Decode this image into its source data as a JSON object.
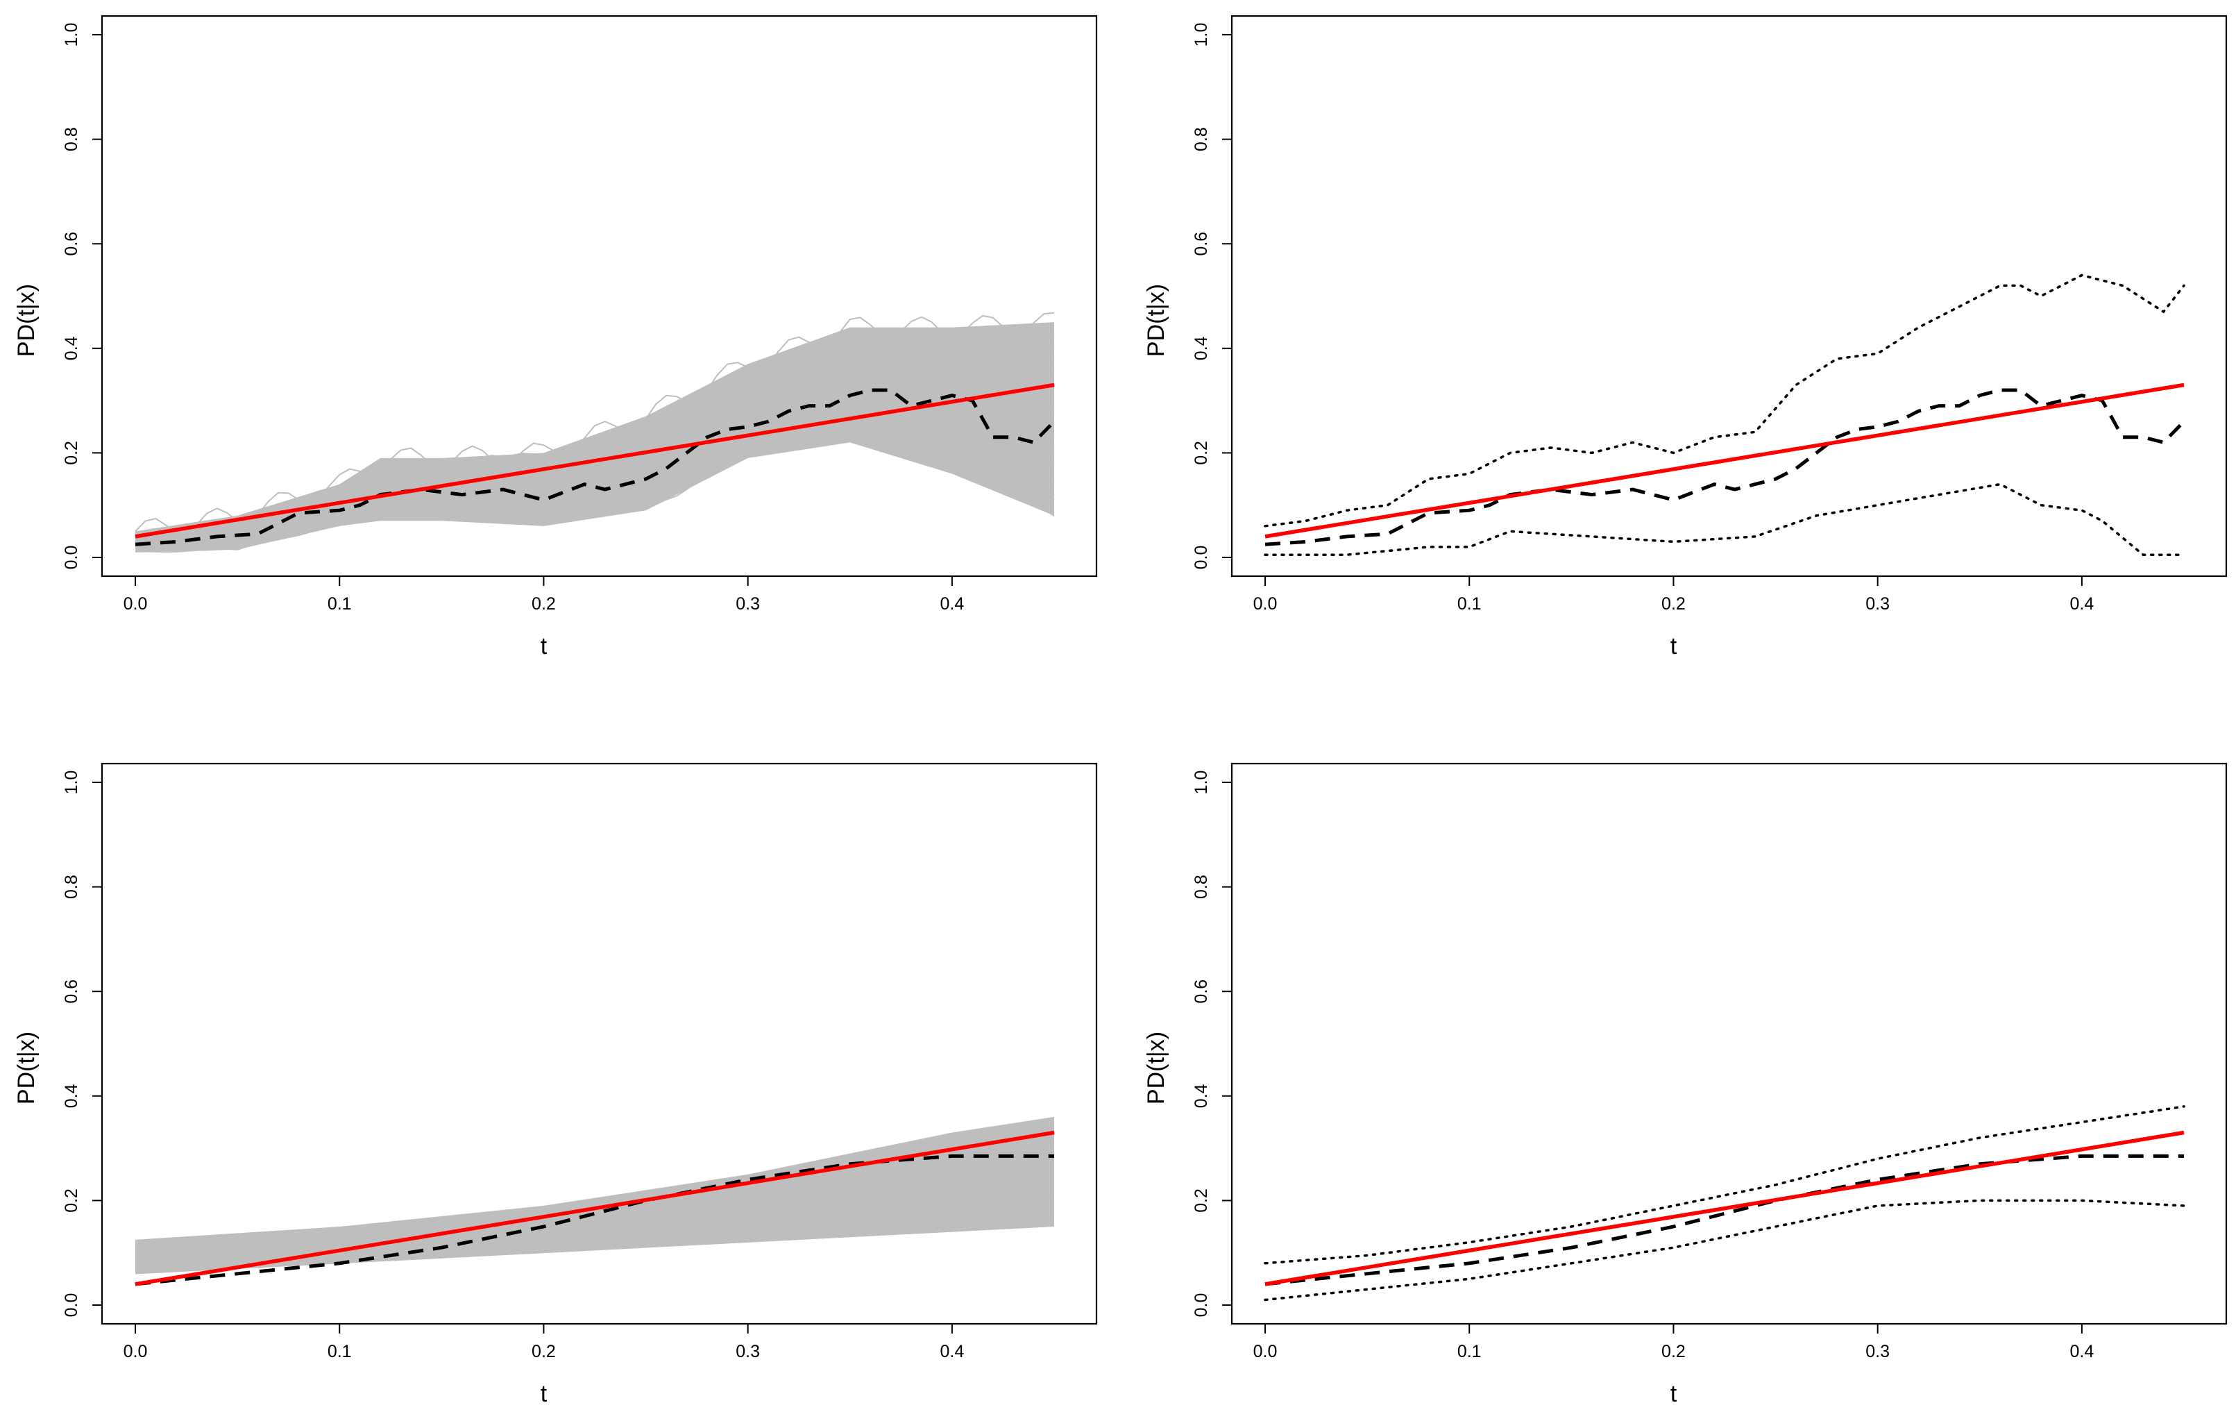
{
  "colors": {
    "true_curve": "#ff0000",
    "estimate": "#000000",
    "samples": "#bebebe",
    "bounds": "#000000"
  },
  "chart_data": [
    {
      "id": "top-left",
      "type": "line",
      "variant": "samples",
      "xlabel": "t",
      "ylabel": "PD(t|x)",
      "xlim": [
        0,
        0.45
      ],
      "ylim": [
        0,
        1
      ],
      "xticks": [
        "0.0",
        "0.1",
        "0.2",
        "0.3",
        "0.4"
      ],
      "yticks": [
        "0.0",
        "0.2",
        "0.4",
        "0.6",
        "0.8",
        "1.0"
      ],
      "true_curve": {
        "x": [
          0,
          0.45
        ],
        "y": [
          0.04,
          0.33
        ]
      },
      "estimate": {
        "x": [
          0,
          0.02,
          0.04,
          0.06,
          0.08,
          0.1,
          0.11,
          0.12,
          0.14,
          0.16,
          0.18,
          0.2,
          0.22,
          0.23,
          0.24,
          0.25,
          0.26,
          0.27,
          0.28,
          0.29,
          0.3,
          0.31,
          0.32,
          0.33,
          0.34,
          0.35,
          0.36,
          0.37,
          0.38,
          0.39,
          0.4,
          0.41,
          0.42,
          0.43,
          0.44,
          0.45
        ],
        "y": [
          0.025,
          0.03,
          0.04,
          0.045,
          0.085,
          0.09,
          0.1,
          0.12,
          0.13,
          0.12,
          0.13,
          0.11,
          0.14,
          0.13,
          0.14,
          0.15,
          0.17,
          0.2,
          0.23,
          0.245,
          0.25,
          0.26,
          0.28,
          0.29,
          0.29,
          0.31,
          0.32,
          0.32,
          0.29,
          0.3,
          0.31,
          0.3,
          0.23,
          0.23,
          0.22,
          0.26
        ]
      },
      "sample_band": {
        "x": [
          0,
          0.05,
          0.1,
          0.12,
          0.15,
          0.2,
          0.25,
          0.3,
          0.35,
          0.4,
          0.45
        ],
        "lower": [
          0.01,
          0.015,
          0.06,
          0.07,
          0.07,
          0.06,
          0.09,
          0.19,
          0.22,
          0.16,
          0.08
        ],
        "upper": [
          0.05,
          0.08,
          0.14,
          0.19,
          0.19,
          0.2,
          0.27,
          0.37,
          0.44,
          0.44,
          0.45
        ]
      }
    },
    {
      "id": "top-right",
      "type": "line",
      "variant": "bounds",
      "xlabel": "t",
      "ylabel": "PD(t|x)",
      "xlim": [
        0,
        0.45
      ],
      "ylim": [
        0,
        1
      ],
      "xticks": [
        "0.0",
        "0.1",
        "0.2",
        "0.3",
        "0.4"
      ],
      "yticks": [
        "0.0",
        "0.2",
        "0.4",
        "0.6",
        "0.8",
        "1.0"
      ],
      "true_curve": {
        "x": [
          0,
          0.45
        ],
        "y": [
          0.04,
          0.33
        ]
      },
      "estimate": {
        "x": [
          0,
          0.02,
          0.04,
          0.06,
          0.08,
          0.1,
          0.11,
          0.12,
          0.14,
          0.16,
          0.18,
          0.2,
          0.22,
          0.23,
          0.24,
          0.25,
          0.26,
          0.27,
          0.28,
          0.29,
          0.3,
          0.31,
          0.32,
          0.33,
          0.34,
          0.35,
          0.36,
          0.37,
          0.38,
          0.39,
          0.4,
          0.41,
          0.42,
          0.43,
          0.44,
          0.45
        ],
        "y": [
          0.025,
          0.03,
          0.04,
          0.045,
          0.085,
          0.09,
          0.1,
          0.12,
          0.13,
          0.12,
          0.13,
          0.11,
          0.14,
          0.13,
          0.14,
          0.15,
          0.17,
          0.2,
          0.23,
          0.245,
          0.25,
          0.26,
          0.28,
          0.29,
          0.29,
          0.31,
          0.32,
          0.32,
          0.29,
          0.3,
          0.31,
          0.3,
          0.23,
          0.23,
          0.22,
          0.26
        ]
      },
      "upper_bound": {
        "x": [
          0,
          0.02,
          0.04,
          0.06,
          0.08,
          0.1,
          0.11,
          0.12,
          0.14,
          0.16,
          0.18,
          0.2,
          0.22,
          0.24,
          0.26,
          0.28,
          0.3,
          0.32,
          0.34,
          0.36,
          0.37,
          0.38,
          0.39,
          0.4,
          0.42,
          0.44,
          0.45
        ],
        "y": [
          0.06,
          0.07,
          0.09,
          0.1,
          0.15,
          0.16,
          0.18,
          0.2,
          0.21,
          0.2,
          0.22,
          0.2,
          0.23,
          0.24,
          0.33,
          0.38,
          0.39,
          0.44,
          0.48,
          0.52,
          0.52,
          0.5,
          0.52,
          0.54,
          0.52,
          0.47,
          0.52
        ]
      },
      "lower_bound": {
        "x": [
          0,
          0.04,
          0.08,
          0.1,
          0.12,
          0.16,
          0.2,
          0.24,
          0.27,
          0.3,
          0.33,
          0.36,
          0.38,
          0.4,
          0.41,
          0.43,
          0.45
        ],
        "y": [
          0.005,
          0.005,
          0.02,
          0.02,
          0.05,
          0.04,
          0.03,
          0.04,
          0.08,
          0.1,
          0.12,
          0.14,
          0.1,
          0.09,
          0.07,
          0.005,
          0.005
        ]
      }
    },
    {
      "id": "bottom-left",
      "type": "line",
      "variant": "samples",
      "xlabel": "t",
      "ylabel": "PD(t|x)",
      "xlim": [
        0,
        0.45
      ],
      "ylim": [
        0,
        1
      ],
      "xticks": [
        "0.0",
        "0.1",
        "0.2",
        "0.3",
        "0.4"
      ],
      "yticks": [
        "0.0",
        "0.2",
        "0.4",
        "0.6",
        "0.8",
        "1.0"
      ],
      "true_curve": {
        "x": [
          0,
          0.45
        ],
        "y": [
          0.04,
          0.33
        ]
      },
      "estimate": {
        "x": [
          0,
          0.05,
          0.1,
          0.15,
          0.2,
          0.25,
          0.3,
          0.35,
          0.4,
          0.43,
          0.45
        ],
        "y": [
          0.04,
          0.06,
          0.08,
          0.11,
          0.15,
          0.2,
          0.24,
          0.27,
          0.285,
          0.285,
          0.285
        ]
      },
      "sample_band": {
        "x": [
          0,
          0.1,
          0.2,
          0.3,
          0.4,
          0.45
        ],
        "lower": [
          0.06,
          0.08,
          0.1,
          0.12,
          0.14,
          0.15
        ],
        "upper": [
          0.125,
          0.15,
          0.19,
          0.25,
          0.33,
          0.36
        ]
      }
    },
    {
      "id": "bottom-right",
      "type": "line",
      "variant": "bounds",
      "xlabel": "t",
      "ylabel": "PD(t|x)",
      "xlim": [
        0,
        0.45
      ],
      "ylim": [
        0,
        1
      ],
      "xticks": [
        "0.0",
        "0.1",
        "0.2",
        "0.3",
        "0.4"
      ],
      "yticks": [
        "0.0",
        "0.2",
        "0.4",
        "0.6",
        "0.8",
        "1.0"
      ],
      "true_curve": {
        "x": [
          0,
          0.45
        ],
        "y": [
          0.04,
          0.33
        ]
      },
      "estimate": {
        "x": [
          0,
          0.05,
          0.1,
          0.15,
          0.2,
          0.25,
          0.3,
          0.35,
          0.4,
          0.43,
          0.45
        ],
        "y": [
          0.04,
          0.06,
          0.08,
          0.11,
          0.15,
          0.2,
          0.24,
          0.27,
          0.285,
          0.285,
          0.285
        ]
      },
      "upper_bound": {
        "x": [
          0,
          0.05,
          0.1,
          0.15,
          0.2,
          0.25,
          0.3,
          0.35,
          0.4,
          0.45
        ],
        "y": [
          0.08,
          0.095,
          0.12,
          0.15,
          0.19,
          0.23,
          0.28,
          0.32,
          0.35,
          0.38
        ]
      },
      "lower_bound": {
        "x": [
          0,
          0.05,
          0.1,
          0.15,
          0.2,
          0.25,
          0.3,
          0.35,
          0.38,
          0.4,
          0.45
        ],
        "y": [
          0.01,
          0.03,
          0.05,
          0.08,
          0.11,
          0.15,
          0.19,
          0.2,
          0.2,
          0.2,
          0.19
        ]
      }
    }
  ]
}
